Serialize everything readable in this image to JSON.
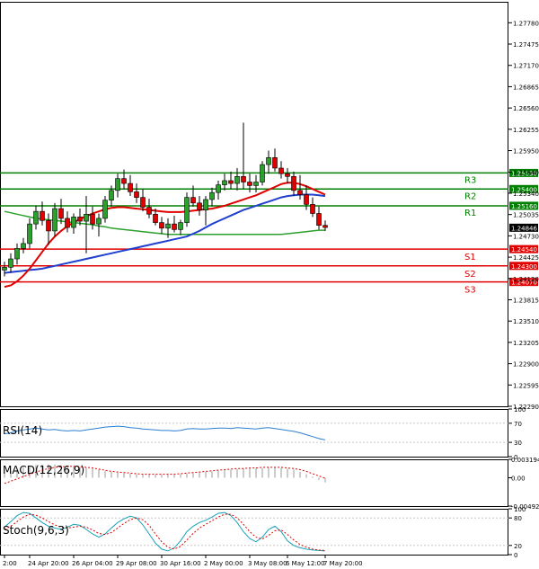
{
  "chart_data": {
    "type": "candlestick",
    "instrument_note": "",
    "main": {
      "y_ticks": [
        1.2778,
        1.27475,
        1.2717,
        1.26865,
        1.2656,
        1.26255,
        1.2595,
        1.2564,
        1.2534,
        1.25035,
        1.2473,
        1.24425,
        1.2412,
        1.23815,
        1.2351,
        1.23205,
        1.229,
        1.22595,
        1.2229
      ],
      "y_tick_labels": [
        "1.27780",
        "1.27475",
        "1.27170",
        "1.26865",
        "1.26560",
        "1.26255",
        "1.25950",
        "1.25640",
        "1.25340",
        "1.25035",
        "1.24730",
        "1.24425",
        "1.24120",
        "1.23815",
        "1.23510",
        "1.23205",
        "1.22900",
        "1.22595",
        "1.22290"
      ],
      "ylim": [
        1.2229,
        1.2808
      ],
      "current_price": 1.24846,
      "current_price_label": "1.24846",
      "levels": [
        {
          "name": "R3",
          "price": 1.2563,
          "label": "1.25630",
          "color": "#008000"
        },
        {
          "name": "R2",
          "price": 1.254,
          "label": "1.25400",
          "color": "#008000"
        },
        {
          "name": "R1",
          "price": 1.2516,
          "label": "1.25160",
          "color": "#008000"
        },
        {
          "name": "S1",
          "price": 1.2454,
          "label": "1.24540",
          "color": "#e00000"
        },
        {
          "name": "S2",
          "price": 1.243,
          "label": "1.24300",
          "color": "#e00000"
        },
        {
          "name": "S3",
          "price": 1.2407,
          "label": "1.24070",
          "color": "#e00000"
        }
      ],
      "candles": [
        {
          "o": 1.2424,
          "h": 1.2436,
          "l": 1.2415,
          "c": 1.2428
        },
        {
          "o": 1.2428,
          "h": 1.2448,
          "l": 1.242,
          "c": 1.244
        },
        {
          "o": 1.244,
          "h": 1.2462,
          "l": 1.2432,
          "c": 1.2455
        },
        {
          "o": 1.2455,
          "h": 1.247,
          "l": 1.2448,
          "c": 1.2462
        },
        {
          "o": 1.2462,
          "h": 1.2498,
          "l": 1.2455,
          "c": 1.249
        },
        {
          "o": 1.249,
          "h": 1.2516,
          "l": 1.2482,
          "c": 1.2508
        },
        {
          "o": 1.2508,
          "h": 1.2522,
          "l": 1.2488,
          "c": 1.2495
        },
        {
          "o": 1.2495,
          "h": 1.2505,
          "l": 1.246,
          "c": 1.248
        },
        {
          "o": 1.248,
          "h": 1.252,
          "l": 1.2472,
          "c": 1.2512
        },
        {
          "o": 1.2512,
          "h": 1.2526,
          "l": 1.249,
          "c": 1.2498
        },
        {
          "o": 1.2498,
          "h": 1.2508,
          "l": 1.2478,
          "c": 1.2485
        },
        {
          "o": 1.2485,
          "h": 1.2505,
          "l": 1.2476,
          "c": 1.25
        },
        {
          "o": 1.25,
          "h": 1.2512,
          "l": 1.2488,
          "c": 1.2494
        },
        {
          "o": 1.2494,
          "h": 1.253,
          "l": 1.2448,
          "c": 1.2504
        },
        {
          "o": 1.2504,
          "h": 1.2515,
          "l": 1.2482,
          "c": 1.249
        },
        {
          "o": 1.249,
          "h": 1.2505,
          "l": 1.2472,
          "c": 1.2498
        },
        {
          "o": 1.2498,
          "h": 1.253,
          "l": 1.2492,
          "c": 1.2524
        },
        {
          "o": 1.2524,
          "h": 1.2545,
          "l": 1.2515,
          "c": 1.2538
        },
        {
          "o": 1.2538,
          "h": 1.2562,
          "l": 1.2528,
          "c": 1.2555
        },
        {
          "o": 1.2555,
          "h": 1.2568,
          "l": 1.254,
          "c": 1.2548
        },
        {
          "o": 1.2548,
          "h": 1.256,
          "l": 1.253,
          "c": 1.2536
        },
        {
          "o": 1.2536,
          "h": 1.2548,
          "l": 1.252,
          "c": 1.2528
        },
        {
          "o": 1.2528,
          "h": 1.254,
          "l": 1.2508,
          "c": 1.2514
        },
        {
          "o": 1.2514,
          "h": 1.2526,
          "l": 1.2498,
          "c": 1.2504
        },
        {
          "o": 1.2504,
          "h": 1.2512,
          "l": 1.2488,
          "c": 1.2492
        },
        {
          "o": 1.2492,
          "h": 1.25,
          "l": 1.2476,
          "c": 1.2484
        },
        {
          "o": 1.2484,
          "h": 1.2498,
          "l": 1.247,
          "c": 1.249
        },
        {
          "o": 1.249,
          "h": 1.2502,
          "l": 1.2478,
          "c": 1.2482
        },
        {
          "o": 1.2482,
          "h": 1.2496,
          "l": 1.2474,
          "c": 1.2492
        },
        {
          "o": 1.2492,
          "h": 1.2535,
          "l": 1.2486,
          "c": 1.2528
        },
        {
          "o": 1.2528,
          "h": 1.2545,
          "l": 1.2515,
          "c": 1.252
        },
        {
          "o": 1.252,
          "h": 1.253,
          "l": 1.2502,
          "c": 1.251
        },
        {
          "o": 1.251,
          "h": 1.253,
          "l": 1.2488,
          "c": 1.2525
        },
        {
          "o": 1.2525,
          "h": 1.2542,
          "l": 1.2515,
          "c": 1.2535
        },
        {
          "o": 1.2535,
          "h": 1.2552,
          "l": 1.2525,
          "c": 1.2546
        },
        {
          "o": 1.2546,
          "h": 1.2562,
          "l": 1.2538,
          "c": 1.2552
        },
        {
          "o": 1.2552,
          "h": 1.2565,
          "l": 1.254,
          "c": 1.2548
        },
        {
          "o": 1.2548,
          "h": 1.257,
          "l": 1.2538,
          "c": 1.2558
        },
        {
          "o": 1.2558,
          "h": 1.2635,
          "l": 1.254,
          "c": 1.255
        },
        {
          "o": 1.255,
          "h": 1.2562,
          "l": 1.2535,
          "c": 1.2545
        },
        {
          "o": 1.2545,
          "h": 1.256,
          "l": 1.2535,
          "c": 1.255
        },
        {
          "o": 1.255,
          "h": 1.258,
          "l": 1.2545,
          "c": 1.2575
        },
        {
          "o": 1.2575,
          "h": 1.2595,
          "l": 1.2562,
          "c": 1.2585
        },
        {
          "o": 1.2585,
          "h": 1.2598,
          "l": 1.2565,
          "c": 1.257
        },
        {
          "o": 1.257,
          "h": 1.258,
          "l": 1.2555,
          "c": 1.2562
        },
        {
          "o": 1.2562,
          "h": 1.257,
          "l": 1.2548,
          "c": 1.2558
        },
        {
          "o": 1.2558,
          "h": 1.2565,
          "l": 1.253,
          "c": 1.2538
        },
        {
          "o": 1.2538,
          "h": 1.256,
          "l": 1.2525,
          "c": 1.2532
        },
        {
          "o": 1.2532,
          "h": 1.2545,
          "l": 1.251,
          "c": 1.2518
        },
        {
          "o": 1.2518,
          "h": 1.2528,
          "l": 1.25,
          "c": 1.2505
        },
        {
          "o": 1.2505,
          "h": 1.2515,
          "l": 1.2482,
          "c": 1.2488
        },
        {
          "o": 1.2488,
          "h": 1.2495,
          "l": 1.248,
          "c": 1.2485
        }
      ],
      "ma_red": [
        1.24,
        1.2402,
        1.2408,
        1.2416,
        1.2426,
        1.2438,
        1.245,
        1.2462,
        1.2472,
        1.248,
        1.2487,
        1.2492,
        1.2497,
        1.2501,
        1.2505,
        1.2508,
        1.2511,
        1.2513,
        1.2514,
        1.2514,
        1.2513,
        1.2512,
        1.2511,
        1.251,
        1.2509,
        1.2508,
        1.2507,
        1.2507,
        1.2507,
        1.2508,
        1.2509,
        1.251,
        1.2511,
        1.2512,
        1.2514,
        1.2516,
        1.2519,
        1.2522,
        1.2525,
        1.2528,
        1.2531,
        1.2535,
        1.2539,
        1.2543,
        1.2547,
        1.2549,
        1.2549,
        1.2547,
        1.2544,
        1.254,
        1.2536,
        1.2532
      ],
      "ma_blue": [
        1.242,
        1.2421,
        1.2422,
        1.2423,
        1.2424,
        1.2425,
        1.2426,
        1.2428,
        1.243,
        1.2432,
        1.2434,
        1.2436,
        1.2438,
        1.244,
        1.2442,
        1.2444,
        1.2446,
        1.2448,
        1.245,
        1.2452,
        1.2454,
        1.2456,
        1.2458,
        1.246,
        1.2462,
        1.2464,
        1.2466,
        1.2468,
        1.247,
        1.2472,
        1.2476,
        1.248,
        1.2485,
        1.249,
        1.2494,
        1.2498,
        1.2502,
        1.2506,
        1.251,
        1.2513,
        1.2516,
        1.2519,
        1.2522,
        1.2525,
        1.2528,
        1.253,
        1.2531,
        1.2532,
        1.2532,
        1.2532,
        1.2531,
        1.253
      ],
      "ma_green": [
        1.2508,
        1.2506,
        1.2504,
        1.2502,
        1.25,
        1.2498,
        1.2497,
        1.2496,
        1.2495,
        1.2494,
        1.2493,
        1.2492,
        1.2491,
        1.249,
        1.2489,
        1.2487,
        1.2486,
        1.2484,
        1.2483,
        1.2482,
        1.2481,
        1.248,
        1.2479,
        1.2478,
        1.2477,
        1.2476,
        1.2475,
        1.2475,
        1.2475,
        1.2475,
        1.2475,
        1.2475,
        1.2475,
        1.2475,
        1.2475,
        1.2475,
        1.2475,
        1.2475,
        1.2475,
        1.2475,
        1.2475,
        1.2475,
        1.2475,
        1.2475,
        1.2475,
        1.2476,
        1.2477,
        1.2478,
        1.2479,
        1.248,
        1.2481,
        1.2481
      ]
    },
    "x_labels": [
      {
        "text": "2:00",
        "index": 0
      },
      {
        "text": "24 Apr 20:00",
        "index": 4
      },
      {
        "text": "26 Apr 04:00",
        "index": 11
      },
      {
        "text": "29 Apr 08:00",
        "index": 18
      },
      {
        "text": "30 Apr 16:00",
        "index": 25
      },
      {
        "text": "2 May 00:00",
        "index": 32
      },
      {
        "text": "3 May 08:00",
        "index": 39
      },
      {
        "text": "6 May 12:00",
        "index": 45
      },
      {
        "text": "7 May 20:00",
        "index": 51
      }
    ],
    "rsi": {
      "label": "RSI(14)",
      "ticks": [
        100,
        70,
        30,
        0
      ],
      "ylim": [
        0,
        100
      ],
      "values": [
        48,
        50,
        54,
        56,
        58,
        60,
        58,
        56,
        57,
        55,
        54,
        55,
        54,
        56,
        58,
        60,
        62,
        63,
        64,
        63,
        61,
        60,
        58,
        57,
        56,
        55,
        55,
        54,
        55,
        58,
        59,
        58,
        58,
        59,
        60,
        60,
        59,
        61,
        60,
        59,
        58,
        60,
        61,
        59,
        57,
        55,
        53,
        50,
        46,
        42,
        38,
        35
      ]
    },
    "macd": {
      "label": "MACD(12,26,9)",
      "ticks": [
        0.003194,
        0,
        -0.00492
      ],
      "tick_labels": [
        "0.003194",
        "0.00",
        "-0.00492"
      ],
      "ylim": [
        -0.00492,
        0.003194
      ],
      "histogram": [
        0.0008,
        0.0012,
        0.0016,
        0.0018,
        0.002,
        0.0022,
        0.0023,
        0.0023,
        0.0023,
        0.0022,
        0.0021,
        0.002,
        0.0019,
        0.0018,
        0.0016,
        0.0014,
        0.0012,
        0.001,
        0.0009,
        0.0008,
        0.0007,
        0.0006,
        0.0005,
        0.0005,
        0.0005,
        0.0005,
        0.0005,
        0.0005,
        0.0006,
        0.0007,
        0.0008,
        0.0009,
        0.001,
        0.0011,
        0.0012,
        0.0013,
        0.0014,
        0.0015,
        0.0016,
        0.0016,
        0.0017,
        0.0017,
        0.0018,
        0.0018,
        0.0017,
        0.0016,
        0.0014,
        0.001,
        0.0006,
        0.0002,
        -0.0004,
        -0.0008
      ],
      "signal": [
        -0.001,
        -0.0006,
        -0.0002,
        0.0002,
        0.0006,
        0.001,
        0.0013,
        0.0016,
        0.0018,
        0.0019,
        0.002,
        0.002,
        0.0019,
        0.0018,
        0.0017,
        0.0015,
        0.0013,
        0.0011,
        0.001,
        0.0009,
        0.0008,
        0.0007,
        0.0006,
        0.0006,
        0.0006,
        0.0006,
        0.0006,
        0.0006,
        0.0007,
        0.0008,
        0.0009,
        0.001,
        0.0011,
        0.0012,
        0.0013,
        0.0014,
        0.0015,
        0.0016,
        0.0016,
        0.0017,
        0.0017,
        0.0018,
        0.0018,
        0.0018,
        0.0018,
        0.0017,
        0.0016,
        0.0014,
        0.0011,
        0.0007,
        0.0003,
        -0.0001
      ]
    },
    "stoch": {
      "label": "Stoch(9,6,3)",
      "ticks": [
        100,
        80,
        20,
        0
      ],
      "ylim": [
        0,
        100
      ],
      "main": [
        60,
        72,
        85,
        92,
        90,
        80,
        70,
        62,
        58,
        55,
        60,
        66,
        64,
        55,
        45,
        38,
        45,
        58,
        70,
        78,
        84,
        80,
        65,
        45,
        25,
        12,
        8,
        15,
        30,
        50,
        62,
        70,
        75,
        82,
        90,
        92,
        85,
        70,
        50,
        35,
        28,
        38,
        55,
        62,
        50,
        30,
        20,
        15,
        12,
        10,
        9,
        8
      ],
      "signal": [
        55,
        62,
        72,
        82,
        88,
        86,
        80,
        72,
        65,
        60,
        58,
        60,
        62,
        60,
        54,
        46,
        44,
        48,
        58,
        68,
        76,
        80,
        76,
        64,
        45,
        28,
        16,
        12,
        18,
        32,
        46,
        58,
        66,
        74,
        82,
        88,
        88,
        80,
        66,
        50,
        38,
        34,
        42,
        52,
        54,
        44,
        32,
        22,
        16,
        12,
        10,
        9
      ]
    }
  }
}
